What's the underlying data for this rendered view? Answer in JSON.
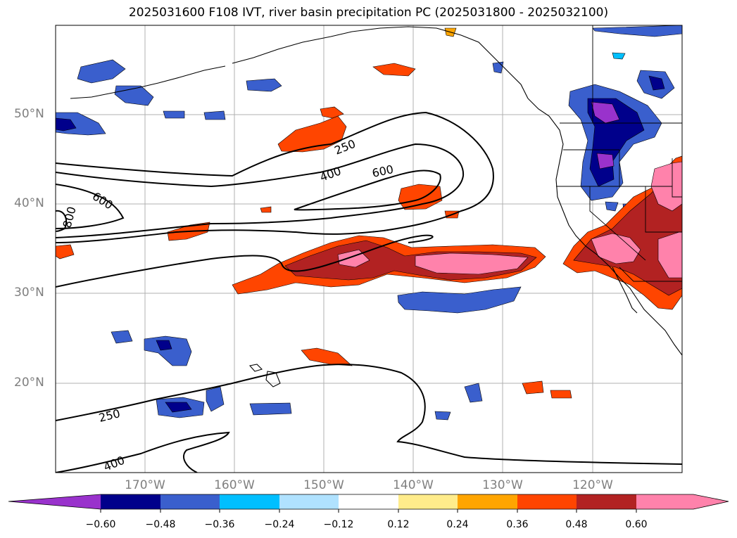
{
  "title": "2025031600 F108 IVT, river basin precipitation PC (2025031800 - 2025032100)",
  "map": {
    "projection": "PlateCarree",
    "lon_range": [
      -180,
      -110
    ],
    "lat_range": [
      10,
      60
    ],
    "gridlines": true,
    "lat_labels": [
      "50°N",
      "40°N",
      "30°N",
      "20°N"
    ],
    "lon_labels": [
      "170°W",
      "160°W",
      "150°W",
      "140°W",
      "130°W",
      "120°W"
    ],
    "ivt_contour_labels": [
      "250",
      "400",
      "600",
      "600",
      "800",
      "250",
      "400"
    ]
  },
  "colorbar": {
    "ticks": [
      "−0.60",
      "−0.48",
      "−0.36",
      "−0.24",
      "−0.12",
      "0.12",
      "0.24",
      "0.36",
      "0.48",
      "0.60"
    ],
    "colors": [
      "#9932cc",
      "#00008b",
      "#3a5fcd",
      "#00bfff",
      "#b0e2ff",
      "#ffffff",
      "#ffec8b",
      "#ffa500",
      "#ff4500",
      "#b22222",
      "#ff82ab"
    ],
    "extend": "both"
  }
}
